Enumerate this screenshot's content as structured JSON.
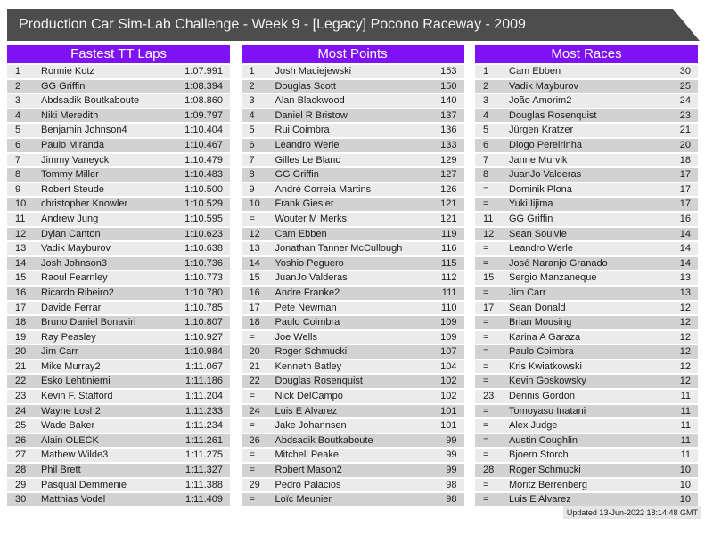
{
  "header": {
    "title": "Production Car Sim-Lab Challenge - Week 9 - [Legacy] Pocono Raceway - 2009"
  },
  "colors": {
    "accent_purple": "#7f11f5",
    "title_bar_bg": "#4d4d4d",
    "row_light": "#ebebeb",
    "row_dark": "#d2d2d2"
  },
  "tables": [
    {
      "title": "Fastest TT Laps",
      "rows": [
        [
          "1",
          "Ronnie Kotz",
          "1:07.991"
        ],
        [
          "2",
          "GG Griffin",
          "1:08.394"
        ],
        [
          "3",
          "Abdsadik Boutkaboute",
          "1:08.860"
        ],
        [
          "4",
          "Niki Meredith",
          "1:09.797"
        ],
        [
          "5",
          "Benjamin Johnson4",
          "1:10.404"
        ],
        [
          "6",
          "Paulo Miranda",
          "1:10.467"
        ],
        [
          "7",
          "Jimmy Vaneyck",
          "1:10.479"
        ],
        [
          "8",
          "Tommy Miller",
          "1:10.483"
        ],
        [
          "9",
          "Robert Steude",
          "1:10.500"
        ],
        [
          "10",
          "christopher Knowler",
          "1:10.529"
        ],
        [
          "11",
          "Andrew Jung",
          "1:10.595"
        ],
        [
          "12",
          "Dylan Canton",
          "1:10.623"
        ],
        [
          "13",
          "Vadik Mayburov",
          "1:10.638"
        ],
        [
          "14",
          "Josh Johnson3",
          "1:10.736"
        ],
        [
          "15",
          "Raoul Fearnley",
          "1:10.773"
        ],
        [
          "16",
          "Ricardo Ribeiro2",
          "1:10.780"
        ],
        [
          "17",
          "Davide Ferrari",
          "1:10.785"
        ],
        [
          "18",
          "Bruno Daniel Bonaviri",
          "1:10.807"
        ],
        [
          "19",
          "Ray Peasley",
          "1:10.927"
        ],
        [
          "20",
          "Jim Carr",
          "1:10.984"
        ],
        [
          "21",
          "Mike Murray2",
          "1:11.067"
        ],
        [
          "22",
          "Esko Lehtiniemi",
          "1:11.186"
        ],
        [
          "23",
          "Kevin F. Stafford",
          "1:11.204"
        ],
        [
          "24",
          "Wayne Losh2",
          "1:11.233"
        ],
        [
          "25",
          "Wade Baker",
          "1:11.234"
        ],
        [
          "26",
          "Alain OLECK",
          "1:11.261"
        ],
        [
          "27",
          "Mathew Wilde3",
          "1:11.275"
        ],
        [
          "28",
          "Phil Brett",
          "1:11.327"
        ],
        [
          "29",
          "Pasqual Demmenie",
          "1:11.388"
        ],
        [
          "30",
          "Matthias Vodel",
          "1:11.409"
        ]
      ]
    },
    {
      "title": "Most Points",
      "rows": [
        [
          "1",
          "Josh Maciejewski",
          "153"
        ],
        [
          "2",
          "Douglas Scott",
          "150"
        ],
        [
          "3",
          "Alan Blackwood",
          "140"
        ],
        [
          "4",
          "Daniel R Bristow",
          "137"
        ],
        [
          "5",
          "Rui Coimbra",
          "136"
        ],
        [
          "6",
          "Leandro Werle",
          "133"
        ],
        [
          "7",
          "Gilles Le Blanc",
          "129"
        ],
        [
          "8",
          "GG Griffin",
          "127"
        ],
        [
          "9",
          "André Correia Martins",
          "126"
        ],
        [
          "10",
          "Frank Giesler",
          "121"
        ],
        [
          "=",
          "Wouter M Merks",
          "121"
        ],
        [
          "12",
          "Cam Ebben",
          "119"
        ],
        [
          "13",
          "Jonathan Tanner McCullough",
          "116"
        ],
        [
          "14",
          "Yoshio Peguero",
          "115"
        ],
        [
          "15",
          "JuanJo Valderas",
          "112"
        ],
        [
          "16",
          "Andre Franke2",
          "111"
        ],
        [
          "17",
          "Pete Newman",
          "110"
        ],
        [
          "18",
          "Paulo Coimbra",
          "109"
        ],
        [
          "=",
          "Joe Wells",
          "109"
        ],
        [
          "20",
          "Roger Schmucki",
          "107"
        ],
        [
          "21",
          "Kenneth Batley",
          "104"
        ],
        [
          "22",
          "Douglas Rosenquist",
          "102"
        ],
        [
          "=",
          "Nick DelCampo",
          "102"
        ],
        [
          "24",
          "Luis E Alvarez",
          "101"
        ],
        [
          "=",
          "Jake Johannsen",
          "101"
        ],
        [
          "26",
          "Abdsadik Boutkaboute",
          "99"
        ],
        [
          "=",
          "Mitchell Peake",
          "99"
        ],
        [
          "=",
          "Robert Mason2",
          "99"
        ],
        [
          "29",
          "Pedro Palacios",
          "98"
        ],
        [
          "=",
          "Loïc Meunier",
          "98"
        ]
      ]
    },
    {
      "title": "Most Races",
      "rows": [
        [
          "1",
          "Cam Ebben",
          "30"
        ],
        [
          "2",
          "Vadik Mayburov",
          "25"
        ],
        [
          "3",
          "João Amorim2",
          "24"
        ],
        [
          "4",
          "Douglas Rosenquist",
          "23"
        ],
        [
          "5",
          "Jürgen Kratzer",
          "21"
        ],
        [
          "6",
          "Diogo Pereirinha",
          "20"
        ],
        [
          "7",
          "Janne Murvik",
          "18"
        ],
        [
          "8",
          "JuanJo Valderas",
          "17"
        ],
        [
          "=",
          "Dominik Plona",
          "17"
        ],
        [
          "=",
          "Yuki Iijima",
          "17"
        ],
        [
          "11",
          "GG Griffin",
          "16"
        ],
        [
          "12",
          "Sean Soulvie",
          "14"
        ],
        [
          "=",
          "Leandro Werle",
          "14"
        ],
        [
          "=",
          "José Naranjo Granado",
          "14"
        ],
        [
          "15",
          "Sergio Manzaneque",
          "13"
        ],
        [
          "=",
          "Jim Carr",
          "13"
        ],
        [
          "17",
          "Sean Donald",
          "12"
        ],
        [
          "=",
          "Brian Mousing",
          "12"
        ],
        [
          "=",
          "Karina A Garaza",
          "12"
        ],
        [
          "=",
          "Paulo Coimbra",
          "12"
        ],
        [
          "=",
          "Kris Kwiatkowski",
          "12"
        ],
        [
          "=",
          "Kevin Goskowsky",
          "12"
        ],
        [
          "23",
          "Dennis Gordon",
          "11"
        ],
        [
          "=",
          "Tomoyasu Inatani",
          "11"
        ],
        [
          "=",
          "Alex Judge",
          "11"
        ],
        [
          "=",
          "Austin Coughlin",
          "11"
        ],
        [
          "=",
          "Bjoern Storch",
          "11"
        ],
        [
          "28",
          "Roger Schmucki",
          "10"
        ],
        [
          "=",
          "Moritz Berrenberg",
          "10"
        ],
        [
          "=",
          "Luis E Alvarez",
          "10"
        ]
      ]
    }
  ],
  "footer": {
    "updated": "Updated 13-Jun-2022 18:14:48 GMT"
  }
}
